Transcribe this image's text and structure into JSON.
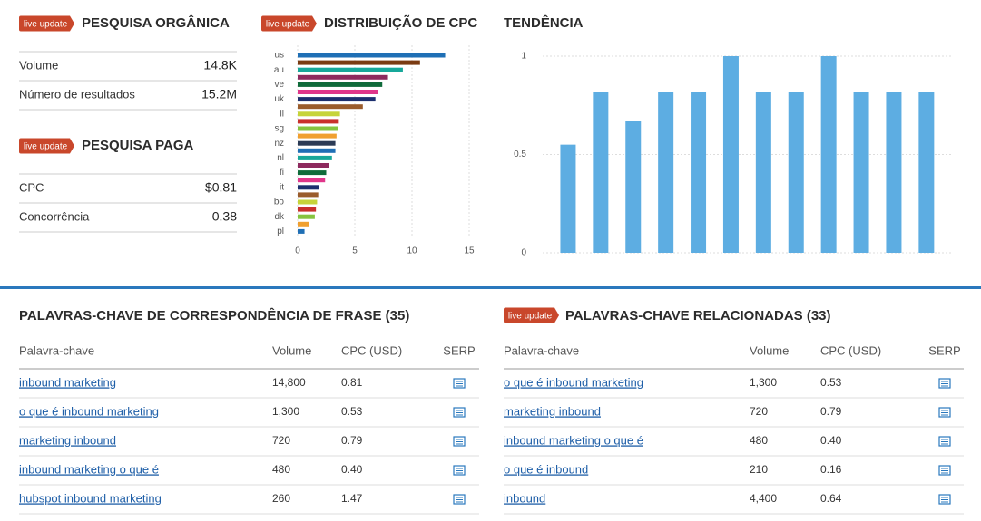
{
  "organic": {
    "badge": "live update",
    "title": "PESQUISA ORGÂNICA",
    "rows": [
      {
        "label": "Volume",
        "value": "14.8K"
      },
      {
        "label": "Número de resultados",
        "value": "15.2M"
      }
    ]
  },
  "paid": {
    "badge": "live update",
    "title": "PESQUISA PAGA",
    "rows": [
      {
        "label": "CPC",
        "value": "$0.81"
      },
      {
        "label": "Concorrência",
        "value": "0.38"
      }
    ]
  },
  "chart_data": [
    {
      "type": "hbar",
      "badge": "live update",
      "title": "DISTRIBUIÇÃO DE CPC",
      "categories": [
        "us",
        null,
        "au",
        null,
        "ve",
        null,
        "uk",
        null,
        "il",
        null,
        "sg",
        null,
        "nz",
        null,
        "nl",
        null,
        "fi",
        null,
        "it",
        null,
        "bo",
        null,
        "dk",
        null,
        "pl"
      ],
      "values": [
        12.9,
        10.7,
        9.2,
        7.9,
        7.4,
        7.0,
        6.8,
        5.7,
        3.7,
        3.6,
        3.5,
        3.4,
        3.3,
        3.3,
        3.0,
        2.7,
        2.5,
        2.4,
        1.9,
        1.8,
        1.7,
        1.6,
        1.5,
        1.0,
        0.6
      ],
      "colors": [
        "#1f6fb5",
        "#7a3b12",
        "#17a89a",
        "#8e2a5e",
        "#0f6b3a",
        "#e0368a",
        "#1c2f6e",
        "#9a5c2c",
        "#c6d43a",
        "#c9302c",
        "#86c440",
        "#f0a030",
        "#2b3a55",
        "#1f6fb5",
        "#17a89a",
        "#8e2a5e",
        "#0f6b3a",
        "#e0368a",
        "#1c2f6e",
        "#9a5c2c",
        "#c6d43a",
        "#c9302c",
        "#86c440",
        "#f0a030",
        "#1f6fb5"
      ],
      "xlim": [
        0,
        15
      ],
      "xticks": [
        0,
        5,
        10,
        15
      ],
      "grid": true
    },
    {
      "type": "bar",
      "title": "TENDÊNCIA",
      "values": [
        0.55,
        0.82,
        0.67,
        0.82,
        0.82,
        1,
        0.82,
        0.82,
        1,
        0.82,
        0.82,
        0.82
      ],
      "color": "#5dade2",
      "ylim": [
        0,
        1
      ],
      "yticks": [
        0,
        0.5,
        1
      ],
      "grid": true
    }
  ],
  "phrase_table": {
    "title": "PALAVRAS-CHAVE DE CORRESPONDÊNCIA DE FRASE (35)",
    "columns": [
      "Palavra-chave",
      "Volume",
      "CPC (USD)",
      "SERP"
    ],
    "rows": [
      [
        "inbound marketing",
        "14,800",
        "0.81"
      ],
      [
        "o que é inbound marketing",
        "1,300",
        "0.53"
      ],
      [
        "marketing inbound",
        "720",
        "0.79"
      ],
      [
        "inbound marketing o que é",
        "480",
        "0.40"
      ],
      [
        "hubspot inbound marketing",
        "260",
        "1.47"
      ]
    ]
  },
  "related_table": {
    "badge": "live update",
    "title": "PALAVRAS-CHAVE RELACIONADAS (33)",
    "columns": [
      "Palavra-chave",
      "Volume",
      "CPC (USD)",
      "SERP"
    ],
    "rows": [
      [
        "o que é inbound marketing",
        "1,300",
        "0.53"
      ],
      [
        "marketing inbound",
        "720",
        "0.79"
      ],
      [
        "inbound marketing o que é",
        "480",
        "0.40"
      ],
      [
        "o que é inbound",
        "210",
        "0.16"
      ],
      [
        "inbound",
        "4,400",
        "0.64"
      ]
    ]
  }
}
